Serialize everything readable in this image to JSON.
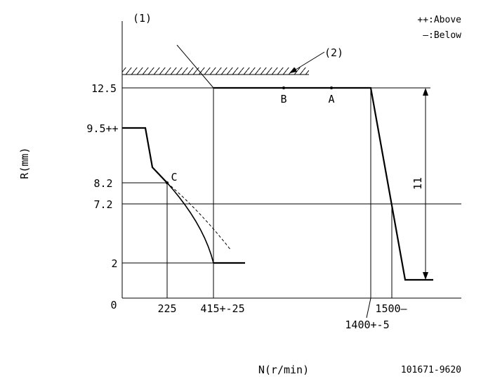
{
  "labels": {
    "fig_ref_1": "(1)",
    "fig_ref_2": "(2)",
    "legend_above": "++:Above",
    "legend_below": "—:Below",
    "y_axis": "R(mm)",
    "x_axis": "N(r/min)",
    "doc_id": "101671-9620"
  },
  "y_ticks": {
    "t12_5": "12.5",
    "t9_5": "9.5++",
    "t8_2": "8.2",
    "t7_2": "7.2",
    "t2": "2",
    "t0": "0"
  },
  "x_ticks": {
    "t225": "225",
    "t415": "415+-25",
    "t1500": "1500—",
    "t1400": "1400+-5"
  },
  "points": {
    "A": "A",
    "B": "B",
    "C": "C"
  },
  "dimension": "11"
}
